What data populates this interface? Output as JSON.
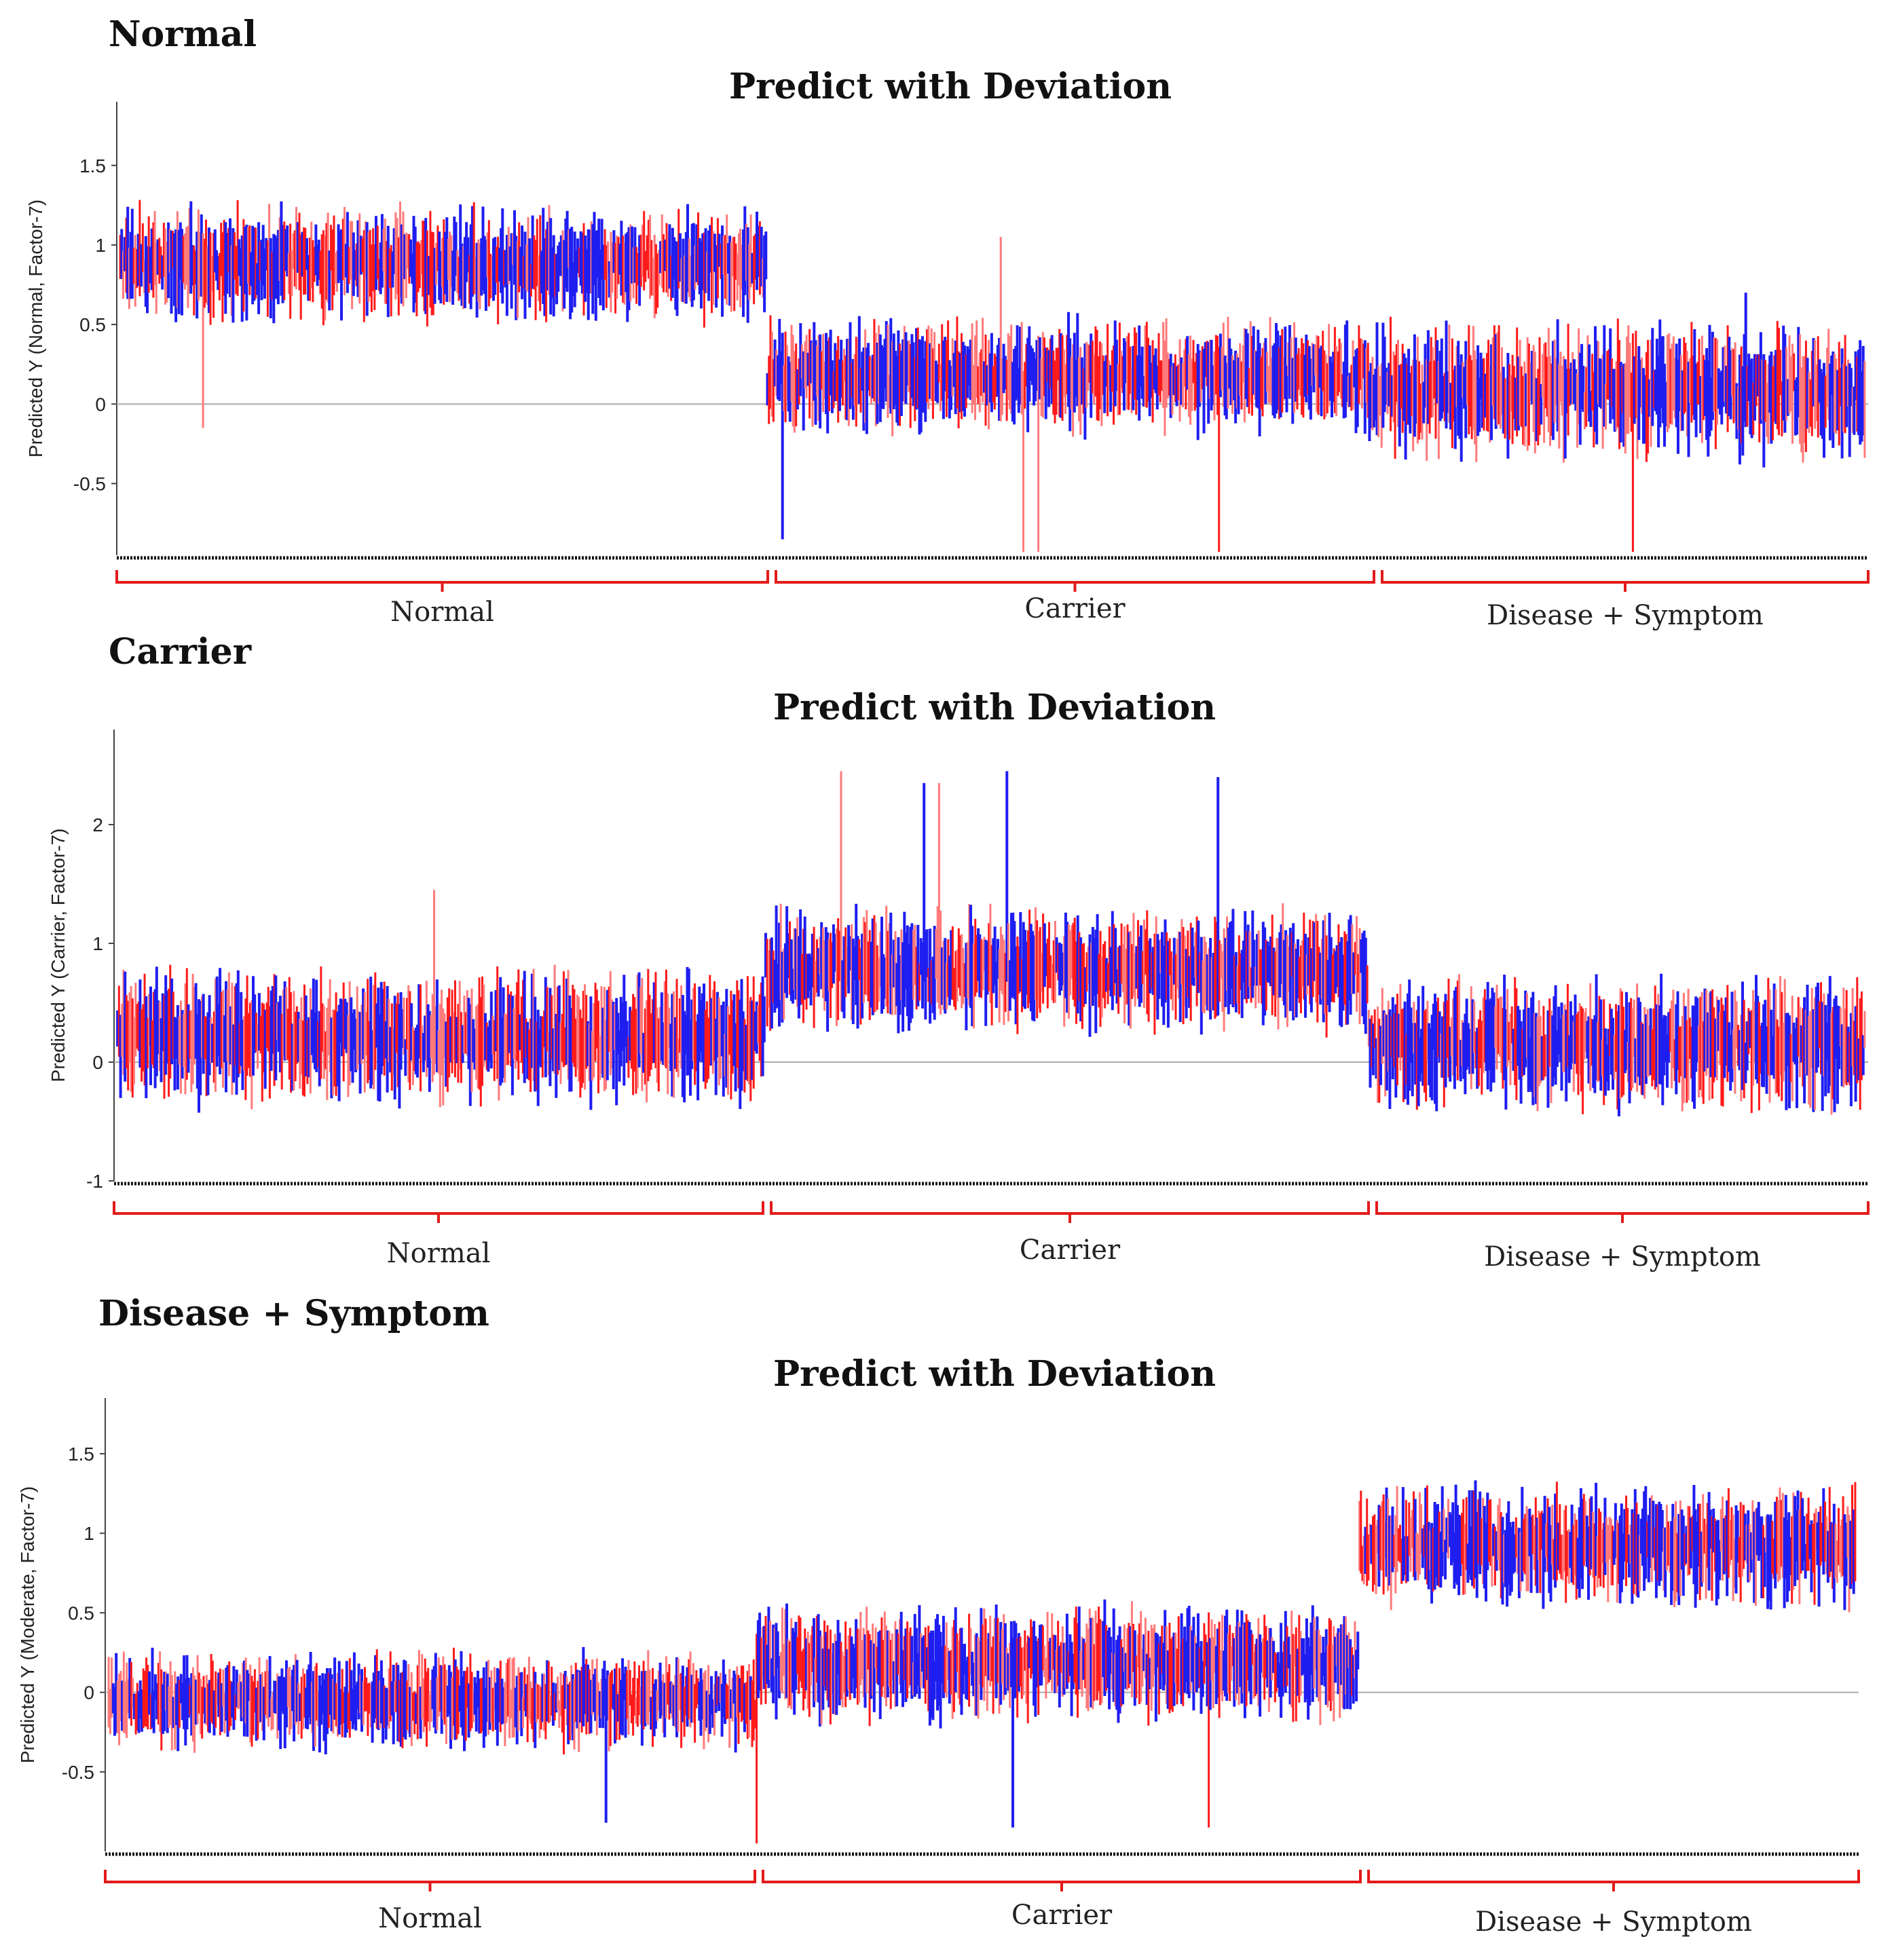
{
  "figure": {
    "colors": {
      "point_color": "#1e1ef0",
      "interval_color": "#ff1a1a",
      "interval_light": "#ff7a7a",
      "bracket_color": "#e31b1b",
      "axis_color": "#444444",
      "zero_line_color": "#aaaaaa"
    }
  },
  "chart_data": [
    {
      "heading": "Normal",
      "type": "errorbar",
      "title": "Predict with Deviation",
      "ylabel": "Predicted Y (Normal, Factor-7)",
      "xlabel": "",
      "ylim": [
        -0.95,
        1.9
      ],
      "yticks": [
        {
          "value": -0.5,
          "label": "-0.5"
        },
        {
          "value": 0,
          "label": "0"
        },
        {
          "value": 0.5,
          "label": "0.5"
        },
        {
          "value": 1,
          "label": "1"
        },
        {
          "value": 1.5,
          "label": "1.5"
        }
      ],
      "groups": [
        {
          "name": "Normal",
          "count": 430,
          "mean": 0.88,
          "spread": 0.38,
          "outliers": [
            {
              "index": 55,
              "value": -0.15
            }
          ]
        },
        {
          "name": "Carrier",
          "count": 400,
          "mean": 0.18,
          "spread": 0.38,
          "outliers": [
            {
              "index": 10,
              "value": -0.85
            },
            {
              "index": 170,
              "value": -0.93
            },
            {
              "index": 180,
              "value": -0.93
            },
            {
              "index": 300,
              "value": -0.93
            },
            {
              "index": 155,
              "value": 1.05
            }
          ]
        },
        {
          "name": "Disease + Symptom",
          "count": 330,
          "mean": 0.08,
          "spread": 0.45,
          "outliers": [
            {
              "index": 175,
              "value": -0.93
            },
            {
              "index": 250,
              "value": 0.7
            }
          ]
        }
      ]
    },
    {
      "heading": "Carrier",
      "type": "errorbar",
      "title": "Predict with Deviation",
      "ylabel": "Predicted Y (Carrier, Factor-7)",
      "xlabel": "",
      "ylim": [
        -1,
        2.8
      ],
      "yticks": [
        {
          "value": -1,
          "label": "-1"
        },
        {
          "value": 0,
          "label": "0"
        },
        {
          "value": 1,
          "label": "1"
        },
        {
          "value": 2,
          "label": "2"
        }
      ],
      "groups": [
        {
          "name": "Normal",
          "count": 430,
          "mean": 0.2,
          "spread": 0.6,
          "outliers": [
            {
              "index": 210,
              "value": 1.45
            }
          ]
        },
        {
          "name": "Carrier",
          "count": 400,
          "mean": 0.78,
          "spread": 0.55,
          "outliers": [
            {
              "index": 50,
              "value": 2.45
            },
            {
              "index": 105,
              "value": 2.35
            },
            {
              "index": 115,
              "value": 2.35
            },
            {
              "index": 160,
              "value": 2.45
            },
            {
              "index": 300,
              "value": 2.4
            }
          ]
        },
        {
          "name": "Disease + Symptom",
          "count": 330,
          "mean": 0.15,
          "spread": 0.6,
          "outliers": []
        }
      ]
    },
    {
      "heading": "Disease + Symptom",
      "type": "errorbar",
      "title": "Predict with Deviation",
      "ylabel": "Predicted Y (Moderate, Factor-7)",
      "xlabel": "",
      "ylim": [
        -1,
        1.85
      ],
      "yticks": [
        {
          "value": -0.5,
          "label": "-0.5"
        },
        {
          "value": 0,
          "label": "0"
        },
        {
          "value": 0.5,
          "label": "0.5"
        },
        {
          "value": 1,
          "label": "1"
        },
        {
          "value": 1.5,
          "label": "1.5"
        }
      ],
      "groups": [
        {
          "name": "Normal",
          "count": 430,
          "mean": -0.05,
          "spread": 0.32,
          "outliers": [
            {
              "index": 330,
              "value": -0.82
            }
          ]
        },
        {
          "name": "Carrier",
          "count": 400,
          "mean": 0.18,
          "spread": 0.38,
          "outliers": [
            {
              "index": 0,
              "value": -0.95
            },
            {
              "index": 170,
              "value": -0.85
            },
            {
              "index": 300,
              "value": -0.85
            }
          ]
        },
        {
          "name": "Disease + Symptom",
          "count": 330,
          "mean": 0.92,
          "spread": 0.4,
          "outliers": []
        }
      ]
    }
  ]
}
